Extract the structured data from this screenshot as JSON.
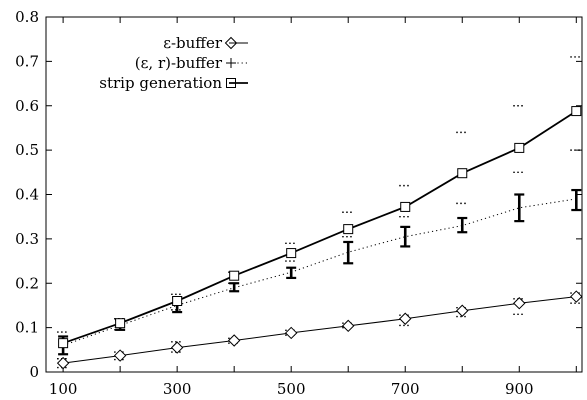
{
  "chart_data": {
    "type": "line",
    "title": "",
    "xlabel": "",
    "ylabel": "",
    "x": [
      100,
      200,
      300,
      400,
      500,
      600,
      700,
      800,
      900,
      1000
    ],
    "xticks": [
      "100",
      "300",
      "500",
      "700",
      "900"
    ],
    "xtick_values": [
      100,
      300,
      500,
      700,
      900
    ],
    "xlim": [
      70,
      1010
    ],
    "yticks": [
      "0",
      "0.1",
      "0.2",
      "0.3",
      "0.4",
      "0.5",
      "0.6",
      "0.7",
      "0.8"
    ],
    "ytick_values": [
      0,
      0.1,
      0.2,
      0.3,
      0.4,
      0.5,
      0.6,
      0.7,
      0.8
    ],
    "ylim": [
      0,
      0.8
    ],
    "grid": false,
    "legend_position": "top-left",
    "series": [
      {
        "name": "ε-buffer",
        "line_style": "solid",
        "marker": "diamond",
        "values": [
          0.02,
          0.037,
          0.055,
          0.071,
          0.088,
          0.104,
          0.12,
          0.138,
          0.155,
          0.17
        ],
        "spread_low": [
          0.01,
          0.028,
          0.045,
          0.065,
          0.083,
          0.1,
          0.105,
          0.125,
          0.13,
          0.155
        ],
        "spread_high": [
          0.03,
          0.045,
          0.068,
          0.076,
          0.094,
          0.11,
          0.128,
          0.145,
          0.165,
          0.178
        ]
      },
      {
        "name": "(ε, r)-buffer",
        "line_style": "dotted",
        "marker": "plus",
        "values": [
          0.06,
          0.105,
          0.15,
          0.19,
          0.225,
          0.27,
          0.305,
          0.33,
          0.37,
          0.39
        ],
        "range_low": [
          0.04,
          0.095,
          0.135,
          0.182,
          0.212,
          0.245,
          0.283,
          0.315,
          0.34,
          0.365
        ],
        "range_high": [
          0.08,
          0.117,
          0.168,
          0.2,
          0.235,
          0.293,
          0.327,
          0.347,
          0.4,
          0.41
        ]
      },
      {
        "name": "strip generation",
        "line_style": "solid-thick",
        "marker": "square",
        "values": [
          0.065,
          0.11,
          0.16,
          0.217,
          0.268,
          0.322,
          0.372,
          0.448,
          0.505,
          0.588
        ],
        "spread_low": [
          0.03,
          0.095,
          0.14,
          0.2,
          0.25,
          0.305,
          0.35,
          0.38,
          0.45,
          0.5
        ],
        "spread_high": [
          0.09,
          0.12,
          0.175,
          0.225,
          0.29,
          0.36,
          0.42,
          0.54,
          0.6,
          0.71
        ]
      }
    ],
    "colors": {
      "axis": "#000000",
      "series": "#000000",
      "background": "#ffffff"
    }
  }
}
